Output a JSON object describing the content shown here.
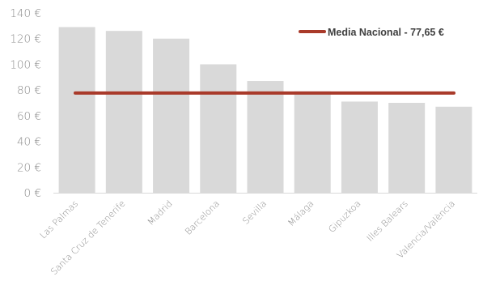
{
  "chart_data": {
    "type": "bar",
    "categories": [
      "Las Palmas",
      "Santa Cruz de Tenerife",
      "Madrid",
      "Barcelona",
      "Sevilla",
      "Málaga",
      "Gipuzkoa",
      "Illes Balears",
      "Valencia/València"
    ],
    "values": [
      129,
      126,
      120,
      100,
      87,
      79,
      71,
      70,
      67
    ],
    "ylim": [
      0,
      140
    ],
    "yticks": [
      0,
      20,
      40,
      60,
      80,
      100,
      120,
      140
    ],
    "ytick_suffix": " €",
    "grid": false,
    "reference_line": {
      "value": 77.65,
      "label": "Media Nacional - 77,65 €"
    },
    "legend_position": "top-right",
    "colors": {
      "bars": "#d9d9d9",
      "line": "#a93a2a",
      "text": "#8c8c8c",
      "axis": "#d9d9d9"
    }
  }
}
